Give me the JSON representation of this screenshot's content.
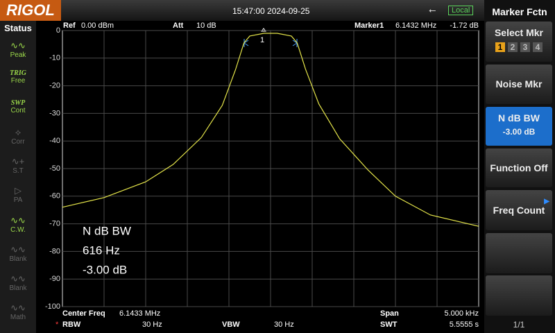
{
  "top_bar": {
    "brand": "RIGOL",
    "datetime": "15:47:00 2024-09-25",
    "status": "Local"
  },
  "status_panel": {
    "title": "Status",
    "items": [
      {
        "label": "Peak"
      },
      {
        "title": "TRIG",
        "label": "Free"
      },
      {
        "title": "SWP",
        "label": "Cont"
      },
      {
        "label": "Corr"
      },
      {
        "label": "S.T"
      },
      {
        "label": "PA"
      },
      {
        "label": "C.W."
      },
      {
        "label": "Blank"
      },
      {
        "label": "Blank"
      },
      {
        "label": "Math"
      }
    ]
  },
  "measurement_header": {
    "ref": "Ref",
    "ref_value": "0.00 dBm",
    "att": "Att",
    "att_value": "10 dB",
    "marker": "Marker1",
    "marker_freq": "6.1432 MHz",
    "marker_level": "-1.72 dB"
  },
  "chart_data": {
    "type": "line",
    "x": [
      6.1408,
      6.1413,
      6.1418,
      6.14213,
      6.14247,
      6.14272,
      6.14288,
      6.14298,
      6.14305,
      6.14322,
      6.14338,
      6.14355,
      6.14362,
      6.14372,
      6.14388,
      6.14413,
      6.14447,
      6.1448,
      6.14522,
      6.1458
    ],
    "values": [
      -64,
      -60.5,
      -54.8,
      -48.5,
      -38.7,
      -27.1,
      -14.1,
      -4.5,
      -2,
      -1,
      -1,
      -2,
      -4.5,
      -14,
      -26.6,
      -39.2,
      -50.5,
      -60,
      -66.8,
      -70.9
    ],
    "color": "#e6e64a",
    "xlim": [
      6.1408,
      6.1458
    ],
    "ylim": [
      -100,
      0
    ],
    "yticks": [
      0,
      -10,
      -20,
      -30,
      -40,
      -50,
      -60,
      -70,
      -80,
      -90,
      -100
    ],
    "grid": true,
    "marker_label": "1",
    "annotations": [
      "N dB BW",
      "616 Hz",
      "-3.00 dB"
    ]
  },
  "footer": {
    "center_freq": "Center Freq",
    "center_freq_value": "6.1433 MHz",
    "span": "Span",
    "span_value": "5.000 kHz",
    "rbw_flag": "*",
    "rbw": "RBW",
    "rbw_value": "30 Hz",
    "vbw": "VBW",
    "vbw_value": "30 Hz",
    "swt": "SWT",
    "swt_value": "5.5555 s"
  },
  "menu": {
    "title": "Marker Fctn",
    "buttons": [
      {
        "label": "Select Mkr",
        "options": [
          "1",
          "2",
          "3",
          "4"
        ]
      },
      {
        "label": "Noise Mkr"
      },
      {
        "label": "N dB BW",
        "value": "-3.00 dB"
      },
      {
        "label": "Function Off"
      },
      {
        "label": "Freq Count"
      }
    ],
    "page": "1/1"
  }
}
